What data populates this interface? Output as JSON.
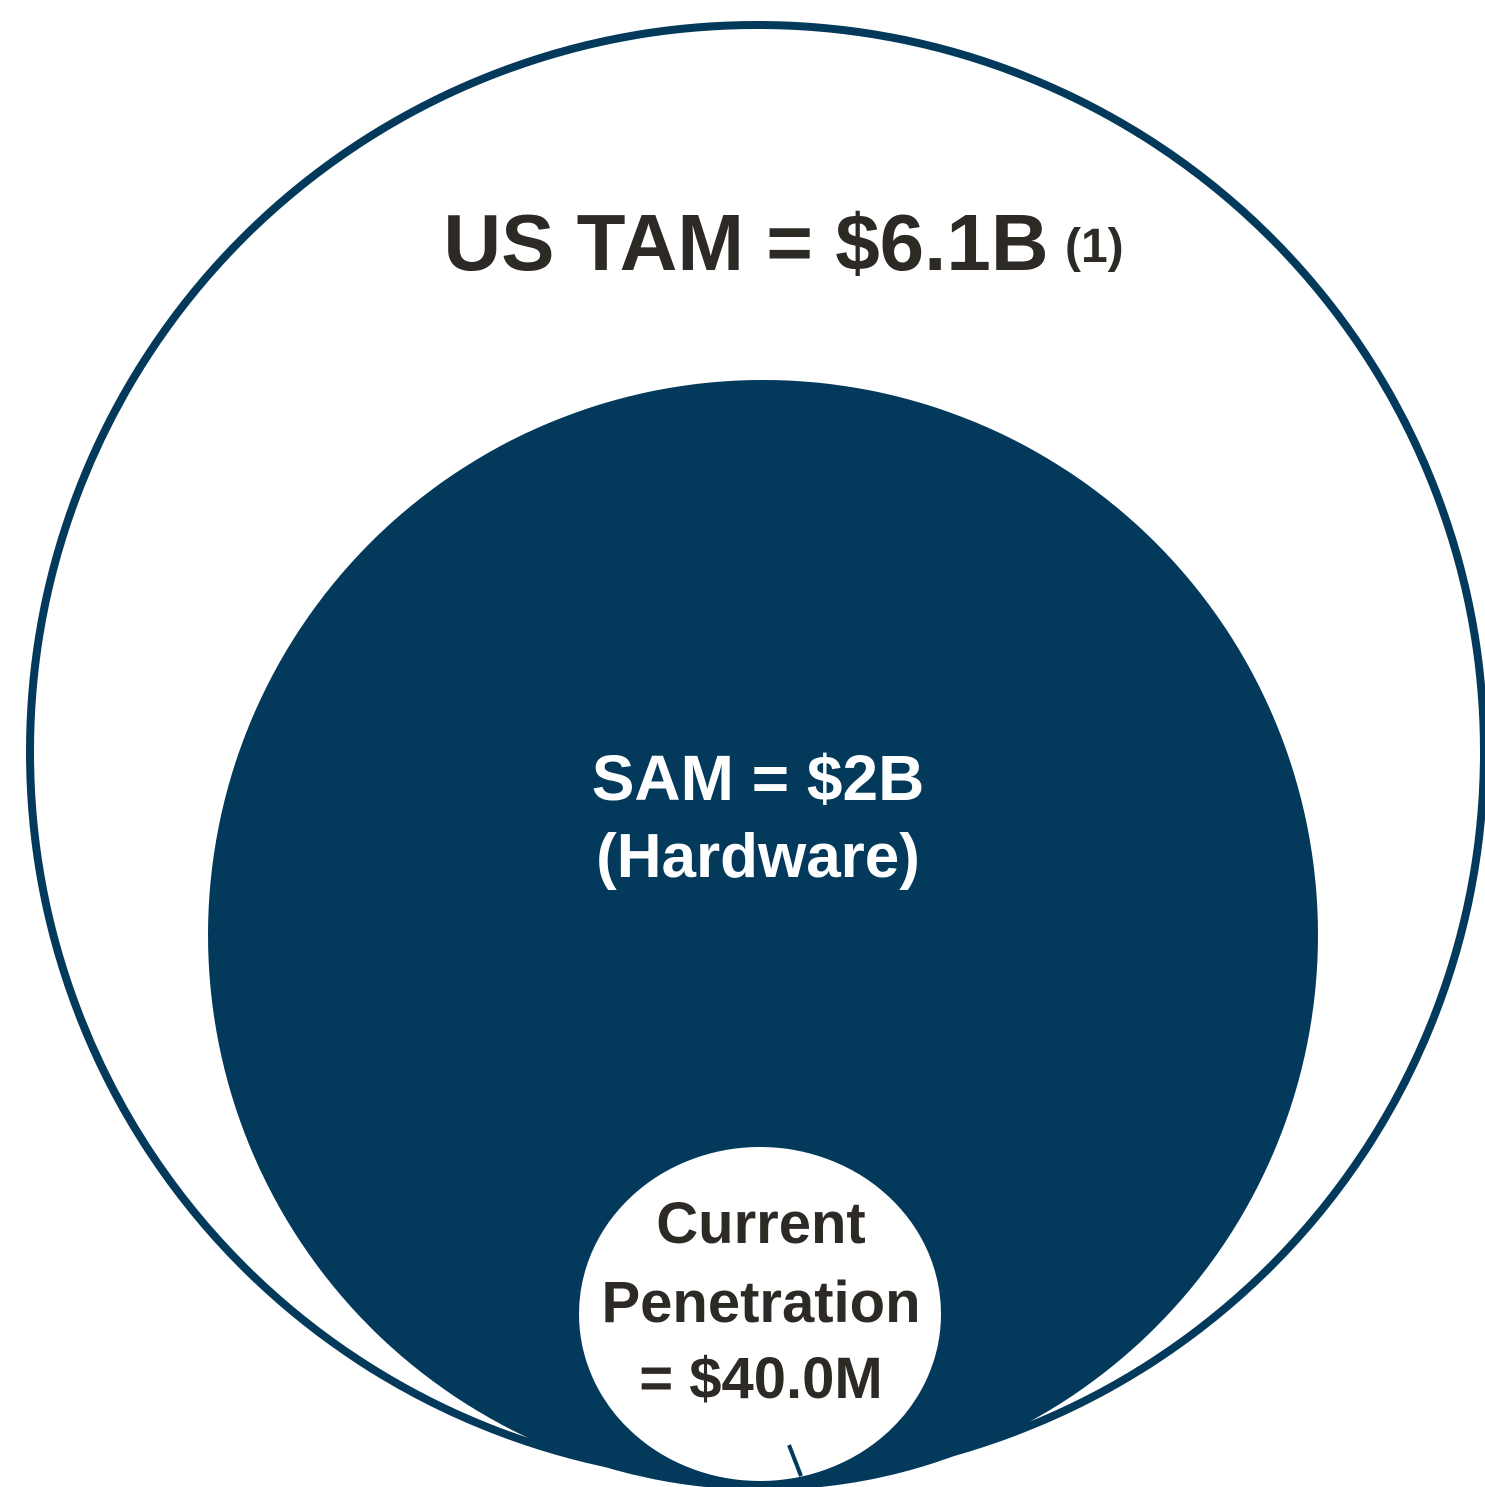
{
  "tam": {
    "label": "US TAM = $6.1B",
    "note": "(1)"
  },
  "sam": {
    "lines": [
      "SAM = $2B",
      "(Hardware)"
    ]
  },
  "current": {
    "lines": [
      "Current",
      "Penetration",
      "= $40.0M"
    ]
  }
}
